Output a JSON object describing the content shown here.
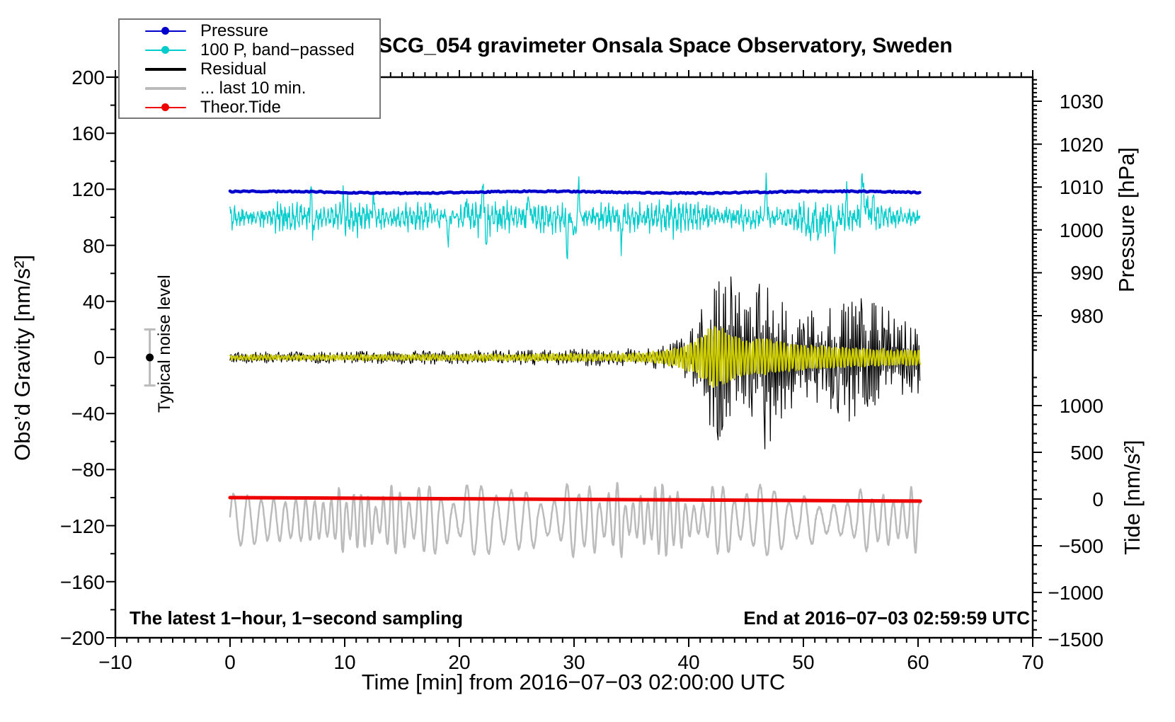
{
  "title": "SCG_054 gravimeter Onsala Space Observatory, Sweden",
  "legend": {
    "items": [
      {
        "label": "Pressure",
        "color": "#0000cc",
        "marker": "dot",
        "line_weight": 2
      },
      {
        "label": "100 P, band−passed",
        "color": "#00cccc",
        "marker": "dot",
        "line_weight": 2
      },
      {
        "label": "Residual",
        "color": "#000000",
        "marker": "none",
        "line_weight": 4
      },
      {
        "label": "... last 10 min.",
        "color": "#bbbbbb",
        "marker": "none",
        "line_weight": 4
      },
      {
        "label": "Theor.Tide",
        "color": "#ee0000",
        "marker": "dot",
        "line_weight": 2
      }
    ]
  },
  "axes": {
    "left": {
      "label": "Obs’d Gravity [nm/s²]",
      "range": [
        -200,
        200
      ],
      "ticks": [
        200,
        160,
        120,
        80,
        40,
        0,
        -40,
        -80,
        -120,
        -160,
        -200
      ],
      "minor_step": 20
    },
    "bottom": {
      "label": "Time [min] from 2016−07−03 02:00:00 UTC",
      "range": [
        -10,
        70
      ],
      "ticks": [
        -10,
        0,
        10,
        20,
        30,
        40,
        50,
        60,
        70
      ],
      "minor_step": 1
    },
    "right_pressure": {
      "label": "Pressure [hPa]",
      "ticks": [
        1030,
        1020,
        1010,
        1000,
        990,
        980
      ],
      "minor_step": 1
    },
    "right_tide": {
      "label": "Tide [nm/s²]",
      "ticks": [
        1000,
        500,
        0,
        -500,
        -1000,
        -1500
      ],
      "minor_step": 100
    }
  },
  "annotations": {
    "sampling_note": "The latest 1−hour, 1−second sampling",
    "end_time_note": "End at 2016−07−03 02:59:59 UTC",
    "noise_marker_label": "Typical noise level"
  },
  "noise_marker": {
    "x_min": -7,
    "value": 0,
    "error": 20,
    "bar_color": "#bbbbbb",
    "dot_color": "#000000"
  },
  "chart_data": {
    "type": "line",
    "title": "SCG_054 gravimeter Onsala Space Observatory, Sweden",
    "xlabel": "Time [min] from 2016−07−03 02:00:00 UTC",
    "ylabel_left": "Obs’d Gravity [nm/s²]",
    "ylabel_right_top": "Pressure [hPa]",
    "ylabel_right_bottom": "Tide [nm/s²]",
    "x_range": [
      -10,
      70
    ],
    "left_range": [
      -200,
      200
    ],
    "pressure_tick_range": [
      980,
      1030
    ],
    "tide_tick_range": [
      -1500,
      1000
    ],
    "data_span_min": [
      0,
      60.2
    ],
    "grid": false,
    "legend_position": "top-left",
    "series": [
      {
        "name": "Pressure",
        "axis": "pressure",
        "color": "#0000cc",
        "width": 4.5,
        "mean": 1008.8,
        "wiggle": 0.25,
        "summary": "barometric pressure nearly constant at ~1009 hPa (≈ +119 on left axis)"
      },
      {
        "name": "100 P, band−passed",
        "axis": "left",
        "color": "#00cccc",
        "width": 1.3,
        "offset": 100,
        "base_amplitude": 10,
        "spike_count": 26,
        "spike_max": 38,
        "summary": "band-passed 100×pressure noise centred at +100, typ ±10, spikes to ±38"
      },
      {
        "name": "Residual",
        "axis": "left",
        "color": "#000000",
        "width": 1.2,
        "offset": 0,
        "envelope": [
          [
            0,
            4
          ],
          [
            10,
            4.5
          ],
          [
            20,
            5
          ],
          [
            28,
            5.5
          ],
          [
            33,
            6.5
          ],
          [
            36,
            7
          ],
          [
            38,
            9
          ],
          [
            39.5,
            14
          ],
          [
            40.5,
            22
          ],
          [
            41.5,
            42
          ],
          [
            42.3,
            62
          ],
          [
            43.2,
            68
          ],
          [
            44,
            52
          ],
          [
            45,
            44
          ],
          [
            46,
            50
          ],
          [
            46.8,
            70
          ],
          [
            47.5,
            55
          ],
          [
            48.5,
            42
          ],
          [
            50,
            33
          ],
          [
            51.5,
            34
          ],
          [
            52.5,
            40
          ],
          [
            53.5,
            46
          ],
          [
            54.5,
            47
          ],
          [
            55.5,
            42
          ],
          [
            56.5,
            38
          ],
          [
            57.5,
            33
          ],
          [
            58.5,
            29
          ],
          [
            59.5,
            27
          ],
          [
            60.2,
            26
          ]
        ],
        "summary": "gravity residual: quiet ±5 until ~37 min, seismic burst from ~40 min peaking ±70 nm/s² near 43–47 min"
      },
      {
        "name": "Residual band−passed (yellow overlay)",
        "axis": "left",
        "color": "#cccc00",
        "width": 2.2,
        "offset": 0,
        "period": 0.3,
        "envelope": [
          [
            0,
            1.5
          ],
          [
            20,
            2
          ],
          [
            33,
            2.5
          ],
          [
            36,
            3
          ],
          [
            38,
            5
          ],
          [
            40,
            9
          ],
          [
            41,
            14
          ],
          [
            42,
            21
          ],
          [
            43,
            22
          ],
          [
            44,
            15
          ],
          [
            45,
            12
          ],
          [
            46,
            13
          ],
          [
            47,
            12
          ],
          [
            48,
            11
          ],
          [
            49,
            9
          ],
          [
            50,
            8.5
          ],
          [
            52,
            7.5
          ],
          [
            54,
            7
          ],
          [
            56,
            6
          ],
          [
            58,
            5.5
          ],
          [
            60.2,
            5
          ]
        ],
        "summary": "filtered residual overlay, peaks ±22 nm/s² during burst"
      },
      {
        "name": "... last 10 min.",
        "axis": "left",
        "color": "#bbbbbb",
        "width": 2.5,
        "offset": -116,
        "amplitude_range": [
          9,
          26
        ],
        "period": 1.15,
        "summary": "last-10-minute residual (microseism band), drawn offset at −116, amplitude ±10…±26"
      },
      {
        "name": "Theor.Tide",
        "axis": "tide",
        "color": "#ee0000",
        "width": 5,
        "points": [
          [
            0,
            15
          ],
          [
            60.2,
            -22
          ]
        ],
        "summary": "theoretical tide, nearly straight line falling from +15 to −22 nm/s² over the hour"
      }
    ]
  }
}
